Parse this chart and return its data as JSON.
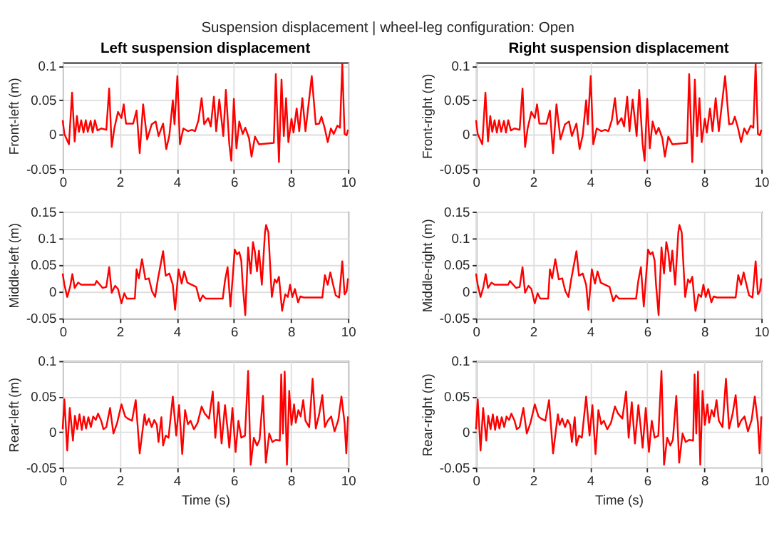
{
  "chart_data": [
    {
      "type": "other",
      "title": "Suspension displacement  |  wheel-leg configuration: Open"
    },
    {
      "type": "line",
      "title": "Left suspension displacement",
      "ylabel": "Front-left (m)",
      "xlim": [
        0,
        10
      ],
      "xticks": [
        0,
        2,
        4,
        6,
        8,
        10
      ],
      "ylim": [
        -0.05,
        0.105
      ],
      "yticks": [
        -0.05,
        0,
        0.05,
        0.1
      ],
      "grid": true,
      "line_style": "solid",
      "x": [
        0,
        0.06,
        0.22,
        0.33,
        0.42,
        0.5,
        0.57,
        0.65,
        0.73,
        0.81,
        0.88,
        0.98,
        1.05,
        1.13,
        1.22,
        1.35,
        1.53,
        1.63,
        1.72,
        1.81,
        1.94,
        2.06,
        2.14,
        2.22,
        2.47,
        2.59,
        2.7,
        2.82,
        2.96,
        3.12,
        3.26,
        3.36,
        3.52,
        3.63,
        3.74,
        3.86,
        3.92,
        4.02,
        4.11,
        4.23,
        4.39,
        4.53,
        4.64,
        4.76,
        4.87,
        4.96,
        5.1,
        5.19,
        5.3,
        5.38,
        5.49,
        5.63,
        5.72,
        5.84,
        5.91,
        6.0,
        6.09,
        6.19,
        6.31,
        6.4,
        6.53,
        6.62,
        6.74,
        6.88,
        7.4,
        7.47,
        7.58,
        7.67,
        7.75,
        7.83,
        7.91,
        8.02,
        8.09,
        8.2,
        8.29,
        8.4,
        8.51,
        8.73,
        8.87,
        8.99,
        9.07,
        9.18,
        9.29,
        9.4,
        9.5,
        9.63,
        9.72,
        9.8,
        9.88,
        9.95,
        10
      ],
      "series": [
        {
          "color": "#ff0000",
          "values": [
            0.021,
            0.001,
            -0.014,
            0.061,
            -0.01,
            0.027,
            0.004,
            0.021,
            0.003,
            0.021,
            0.004,
            0.02,
            0.003,
            0.021,
            0.006,
            0.009,
            0.007,
            0.067,
            -0.018,
            0.009,
            0.033,
            0.024,
            0.044,
            0.016,
            0.016,
            0.035,
            -0.027,
            0.044,
            -0.007,
            0.015,
            0.019,
            -0.002,
            0.016,
            -0.021,
            -0.001,
            0.05,
            0.015,
            0.085,
            -0.014,
            0.009,
            0.005,
            0.007,
            0.005,
            0.021,
            0.053,
            0.015,
            0.024,
            0.012,
            0.055,
            0.005,
            0.051,
            -0.002,
            0.065,
            -0.014,
            -0.038,
            0.052,
            -0.02,
            0.019,
            0.001,
            0.01,
            -0.005,
            -0.032,
            -0.003,
            -0.014,
            -0.012,
            0.088,
            -0.04,
            0.08,
            -0.002,
            0.053,
            -0.011,
            0.023,
            0.003,
            0.038,
            0.005,
            0.053,
            0.005,
            0.085,
            0.015,
            0.016,
            0.026,
            0.01,
            -0.011,
            0.009,
            0.001,
            0.013,
            0.01,
            0.103,
            0.001,
            -0.001,
            0.007
          ]
        }
      ]
    },
    {
      "type": "line",
      "title": "Right suspension displacement",
      "ylabel": "Front-right (m)",
      "xlim": [
        0,
        10
      ],
      "xticks": [
        0,
        2,
        4,
        6,
        8,
        10
      ],
      "ylim": [
        -0.05,
        0.105
      ],
      "yticks": [
        -0.05,
        0,
        0.05,
        0.1
      ],
      "grid": true,
      "line_style": "solid",
      "x": [
        0,
        0.06,
        0.22,
        0.33,
        0.42,
        0.5,
        0.57,
        0.65,
        0.73,
        0.81,
        0.88,
        0.98,
        1.05,
        1.13,
        1.22,
        1.35,
        1.53,
        1.63,
        1.72,
        1.81,
        1.94,
        2.06,
        2.14,
        2.22,
        2.47,
        2.59,
        2.7,
        2.82,
        2.96,
        3.12,
        3.26,
        3.36,
        3.52,
        3.63,
        3.74,
        3.86,
        3.92,
        4.02,
        4.11,
        4.23,
        4.39,
        4.53,
        4.64,
        4.76,
        4.87,
        4.96,
        5.1,
        5.19,
        5.3,
        5.38,
        5.49,
        5.63,
        5.72,
        5.84,
        5.91,
        6.0,
        6.09,
        6.19,
        6.31,
        6.4,
        6.53,
        6.62,
        6.74,
        6.88,
        7.4,
        7.47,
        7.58,
        7.67,
        7.75,
        7.83,
        7.91,
        8.02,
        8.09,
        8.2,
        8.29,
        8.4,
        8.51,
        8.73,
        8.87,
        8.99,
        9.07,
        9.18,
        9.29,
        9.4,
        9.5,
        9.63,
        9.72,
        9.8,
        9.88,
        9.95,
        10
      ],
      "series": [
        {
          "color": "#ff0000",
          "values": [
            0.021,
            0.001,
            -0.014,
            0.061,
            -0.01,
            0.027,
            0.004,
            0.021,
            0.003,
            0.021,
            0.004,
            0.02,
            0.003,
            0.021,
            0.006,
            0.009,
            0.007,
            0.067,
            -0.018,
            0.009,
            0.033,
            0.024,
            0.044,
            0.016,
            0.016,
            0.035,
            -0.027,
            0.044,
            -0.007,
            0.015,
            0.019,
            -0.002,
            0.016,
            -0.021,
            -0.001,
            0.05,
            0.015,
            0.085,
            -0.014,
            0.009,
            0.005,
            0.007,
            0.005,
            0.021,
            0.053,
            0.015,
            0.024,
            0.012,
            0.055,
            0.005,
            0.051,
            -0.002,
            0.065,
            -0.014,
            -0.038,
            0.052,
            -0.02,
            0.019,
            0.001,
            0.01,
            -0.005,
            -0.032,
            -0.003,
            -0.014,
            -0.012,
            0.088,
            -0.04,
            0.08,
            -0.002,
            0.053,
            -0.011,
            0.023,
            0.003,
            0.038,
            0.005,
            0.053,
            0.005,
            0.085,
            0.015,
            0.016,
            0.026,
            0.01,
            -0.011,
            0.009,
            0.001,
            0.013,
            0.01,
            0.103,
            0.001,
            -0.001,
            0.007
          ]
        }
      ]
    },
    {
      "type": "line",
      "ylabel": "Middle-left (m)",
      "xlim": [
        0,
        10
      ],
      "xticks": [
        0,
        2,
        4,
        6,
        8,
        10
      ],
      "ylim": [
        -0.05,
        0.15
      ],
      "yticks": [
        -0.05,
        0,
        0.05,
        0.1,
        0.15
      ],
      "grid": true,
      "line_style": "solid",
      "x": [
        0,
        0.06,
        0.16,
        0.26,
        0.34,
        0.42,
        0.54,
        0.65,
        1.13,
        1.19,
        1.4,
        1.53,
        1.63,
        1.72,
        1.84,
        1.94,
        2.06,
        2.16,
        2.25,
        2.53,
        2.59,
        2.67,
        2.78,
        2.9,
        3.02,
        3.13,
        3.24,
        3.33,
        3.52,
        3.61,
        3.74,
        3.86,
        3.94,
        4.06,
        4.17,
        4.26,
        4.37,
        4.68,
        4.81,
        4.91,
        5.01,
        5.61,
        5.69,
        5.78,
        5.88,
        5.95,
        6.03,
        6.11,
        6.19,
        6.26,
        6.31,
        6.4,
        6.5,
        6.59,
        6.67,
        6.74,
        6.81,
        6.88,
        6.98,
        7.09,
        7.13,
        7.21,
        7.33,
        7.43,
        7.5,
        7.58,
        7.69,
        7.8,
        7.89,
        7.97,
        8.05,
        8.14,
        8.25,
        8.33,
        8.45,
        9.1,
        9.19,
        9.29,
        9.38,
        9.47,
        9.57,
        9.69,
        9.8,
        9.88,
        9.95,
        10
      ],
      "series": [
        {
          "color": "#ff0000",
          "values": [
            0.034,
            0.013,
            -0.01,
            0.009,
            0.033,
            0.007,
            0.017,
            0.013,
            0.013,
            0.02,
            0.007,
            0.009,
            0.046,
            -0.002,
            0.011,
            0.005,
            -0.022,
            -0.003,
            -0.013,
            -0.013,
            0.042,
            0.025,
            0.061,
            0.023,
            0.025,
            0.001,
            -0.01,
            0.021,
            0.076,
            0.03,
            0.034,
            0.013,
            -0.034,
            0.042,
            0.015,
            0.038,
            0.017,
            0.009,
            -0.018,
            -0.007,
            -0.013,
            -0.013,
            0.021,
            0.046,
            -0.028,
            0.021,
            0.079,
            0.07,
            0.074,
            0.058,
            0.013,
            -0.044,
            0.083,
            0.034,
            0.093,
            0.074,
            0.038,
            0.077,
            0.013,
            0.111,
            0.125,
            0.111,
            -0.01,
            0.023,
            0.017,
            0.028,
            -0.036,
            -0.005,
            -0.01,
            0.013,
            -0.01,
            0.005,
            -0.02,
            -0.009,
            -0.011,
            -0.011,
            0.031,
            0.013,
            0.036,
            0.015,
            -0.007,
            -0.011,
            0.057,
            -0.005,
            0.001,
            0.025
          ]
        }
      ]
    },
    {
      "type": "line",
      "ylabel": "Middle-right (m)",
      "xlim": [
        0,
        10
      ],
      "xticks": [
        0,
        2,
        4,
        6,
        8,
        10
      ],
      "ylim": [
        -0.05,
        0.15
      ],
      "yticks": [
        -0.05,
        0,
        0.05,
        0.1,
        0.15
      ],
      "grid": true,
      "line_style": "solid",
      "x": [
        0,
        0.06,
        0.16,
        0.26,
        0.34,
        0.42,
        0.54,
        0.65,
        1.13,
        1.19,
        1.4,
        1.53,
        1.63,
        1.72,
        1.84,
        1.94,
        2.06,
        2.16,
        2.25,
        2.53,
        2.59,
        2.67,
        2.78,
        2.9,
        3.02,
        3.13,
        3.24,
        3.33,
        3.52,
        3.61,
        3.74,
        3.86,
        3.94,
        4.06,
        4.17,
        4.26,
        4.37,
        4.68,
        4.81,
        4.91,
        5.01,
        5.61,
        5.69,
        5.78,
        5.88,
        5.95,
        6.03,
        6.11,
        6.19,
        6.26,
        6.31,
        6.4,
        6.5,
        6.59,
        6.67,
        6.74,
        6.81,
        6.88,
        6.98,
        7.09,
        7.13,
        7.21,
        7.33,
        7.43,
        7.5,
        7.58,
        7.69,
        7.8,
        7.89,
        7.97,
        8.05,
        8.14,
        8.25,
        8.33,
        8.45,
        9.1,
        9.19,
        9.29,
        9.38,
        9.47,
        9.57,
        9.69,
        9.8,
        9.88,
        9.95,
        10
      ],
      "series": [
        {
          "color": "#ff0000",
          "values": [
            0.034,
            0.013,
            -0.01,
            0.009,
            0.033,
            0.007,
            0.017,
            0.013,
            0.013,
            0.02,
            0.007,
            0.009,
            0.046,
            -0.002,
            0.011,
            0.005,
            -0.022,
            -0.003,
            -0.013,
            -0.013,
            0.042,
            0.025,
            0.061,
            0.023,
            0.025,
            0.001,
            -0.01,
            0.021,
            0.076,
            0.03,
            0.034,
            0.013,
            -0.034,
            0.042,
            0.015,
            0.038,
            0.017,
            0.009,
            -0.018,
            -0.007,
            -0.013,
            -0.013,
            0.021,
            0.046,
            -0.028,
            0.021,
            0.079,
            0.07,
            0.074,
            0.058,
            0.013,
            -0.044,
            0.083,
            0.034,
            0.093,
            0.074,
            0.038,
            0.077,
            0.013,
            0.111,
            0.125,
            0.111,
            -0.01,
            0.023,
            0.017,
            0.028,
            -0.036,
            -0.005,
            -0.01,
            0.013,
            -0.01,
            0.005,
            -0.02,
            -0.009,
            -0.011,
            -0.011,
            0.031,
            0.013,
            0.036,
            0.015,
            -0.007,
            -0.011,
            0.057,
            -0.005,
            0.001,
            0.025
          ]
        }
      ]
    },
    {
      "type": "line",
      "xlabel": "Time (s)",
      "ylabel": "Rear-left (m)",
      "xlim": [
        0,
        10
      ],
      "xticks": [
        0,
        2,
        4,
        6,
        8,
        10
      ],
      "ylim": [
        -0.05,
        0.1
      ],
      "yticks": [
        -0.05,
        0,
        0.05,
        0.1
      ],
      "grid": true,
      "line_style": "solid",
      "x": [
        0,
        0.06,
        0.16,
        0.25,
        0.36,
        0.43,
        0.51,
        0.59,
        0.67,
        0.74,
        0.82,
        0.9,
        0.99,
        1.07,
        1.16,
        1.24,
        1.35,
        1.43,
        1.53,
        1.66,
        1.78,
        1.91,
        2.06,
        2.19,
        2.28,
        2.43,
        2.56,
        2.7,
        2.87,
        2.93,
        3.02,
        3.12,
        3.21,
        3.3,
        3.36,
        3.46,
        3.52,
        3.61,
        3.71,
        3.86,
        3.98,
        4.08,
        4.19,
        4.29,
        4.39,
        4.48,
        4.6,
        4.73,
        4.87,
        4.98,
        5.13,
        5.26,
        5.35,
        5.46,
        5.57,
        5.69,
        5.78,
        5.84,
        5.95,
        6.06,
        6.16,
        6.26,
        6.39,
        6.5,
        6.59,
        6.7,
        6.81,
        6.9,
        7.02,
        7.12,
        7.24,
        7.35,
        7.47,
        7.61,
        7.66,
        7.72,
        7.78,
        7.86,
        7.94,
        8.02,
        8.11,
        8.17,
        8.26,
        8.34,
        8.43,
        8.51,
        8.64,
        8.76,
        8.87,
        8.99,
        9.1,
        9.19,
        9.29,
        9.41,
        9.53,
        9.66,
        9.77,
        9.88,
        9.94,
        10
      ],
      "series": [
        {
          "color": "#ff0000",
          "values": [
            0.004,
            0.046,
            -0.026,
            0.034,
            -0.012,
            0.023,
            0.004,
            0.025,
            0.003,
            0.022,
            0.005,
            0.021,
            0.007,
            0.022,
            0.017,
            0.026,
            0.016,
            0.004,
            0.007,
            0.034,
            -0.002,
            0.013,
            0.039,
            0.022,
            0.019,
            0.016,
            0.045,
            -0.03,
            0.025,
            0.01,
            0.019,
            0.007,
            0.017,
            0.01,
            -0.014,
            0.021,
            -0.019,
            -0.005,
            -0.008,
            0.05,
            -0.005,
            0.038,
            -0.031,
            0.031,
            0.011,
            0.016,
            0.004,
            0.013,
            0.036,
            0.026,
            0.019,
            0.057,
            -0.008,
            0.042,
            -0.016,
            0.038,
            0.004,
            -0.022,
            0.034,
            -0.028,
            0.016,
            -0.008,
            -0.005,
            0.086,
            -0.046,
            -0.008,
            -0.019,
            -0.011,
            0.051,
            -0.043,
            -0.002,
            -0.014,
            -0.011,
            -0.012,
            0.081,
            -0.002,
            0.085,
            -0.046,
            0.058,
            0.01,
            0.039,
            0.013,
            0.031,
            0.022,
            0.045,
            0.016,
            0.007,
            0.075,
            0.005,
            0.025,
            0.052,
            0.007,
            0.016,
            0.022,
            0.001,
            0.017,
            0.05,
            0.013,
            -0.03,
            0.022
          ]
        }
      ]
    },
    {
      "type": "line",
      "xlabel": "Time (s)",
      "ylabel": "Rear-right (m)",
      "xlim": [
        0,
        10
      ],
      "xticks": [
        0,
        2,
        4,
        6,
        8,
        10
      ],
      "ylim": [
        -0.05,
        0.1
      ],
      "yticks": [
        -0.05,
        0,
        0.05,
        0.1
      ],
      "grid": true,
      "line_style": "solid",
      "x": [
        0,
        0.06,
        0.16,
        0.25,
        0.36,
        0.43,
        0.51,
        0.59,
        0.67,
        0.74,
        0.82,
        0.9,
        0.99,
        1.07,
        1.16,
        1.24,
        1.35,
        1.43,
        1.53,
        1.66,
        1.78,
        1.91,
        2.06,
        2.19,
        2.28,
        2.43,
        2.56,
        2.7,
        2.87,
        2.93,
        3.02,
        3.12,
        3.21,
        3.3,
        3.36,
        3.46,
        3.52,
        3.61,
        3.71,
        3.86,
        3.98,
        4.08,
        4.19,
        4.29,
        4.39,
        4.48,
        4.6,
        4.73,
        4.87,
        4.98,
        5.13,
        5.26,
        5.35,
        5.46,
        5.57,
        5.69,
        5.78,
        5.84,
        5.95,
        6.06,
        6.16,
        6.26,
        6.39,
        6.5,
        6.59,
        6.7,
        6.81,
        6.9,
        7.02,
        7.12,
        7.24,
        7.35,
        7.47,
        7.61,
        7.66,
        7.72,
        7.78,
        7.86,
        7.94,
        8.02,
        8.11,
        8.17,
        8.26,
        8.34,
        8.43,
        8.51,
        8.64,
        8.76,
        8.87,
        8.99,
        9.1,
        9.19,
        9.29,
        9.41,
        9.53,
        9.66,
        9.77,
        9.88,
        9.94,
        10
      ],
      "series": [
        {
          "color": "#ff0000",
          "values": [
            0.004,
            0.046,
            -0.026,
            0.034,
            -0.012,
            0.023,
            0.004,
            0.025,
            0.003,
            0.022,
            0.005,
            0.021,
            0.007,
            0.022,
            0.017,
            0.026,
            0.016,
            0.004,
            0.007,
            0.034,
            -0.002,
            0.013,
            0.039,
            0.022,
            0.019,
            0.016,
            0.045,
            -0.03,
            0.025,
            0.01,
            0.019,
            0.007,
            0.017,
            0.01,
            -0.014,
            0.021,
            -0.019,
            -0.005,
            -0.008,
            0.05,
            -0.005,
            0.038,
            -0.031,
            0.031,
            0.011,
            0.016,
            0.004,
            0.013,
            0.036,
            0.026,
            0.019,
            0.057,
            -0.008,
            0.042,
            -0.016,
            0.038,
            0.004,
            -0.022,
            0.034,
            -0.028,
            0.016,
            -0.008,
            -0.005,
            0.086,
            -0.046,
            -0.008,
            -0.019,
            -0.011,
            0.051,
            -0.043,
            -0.002,
            -0.014,
            -0.011,
            -0.012,
            0.081,
            -0.002,
            0.085,
            -0.046,
            0.058,
            0.01,
            0.039,
            0.013,
            0.031,
            0.022,
            0.045,
            0.016,
            0.007,
            0.075,
            0.005,
            0.025,
            0.052,
            0.007,
            0.016,
            0.022,
            0.001,
            0.017,
            0.05,
            0.013,
            -0.03,
            0.022
          ]
        }
      ]
    }
  ]
}
